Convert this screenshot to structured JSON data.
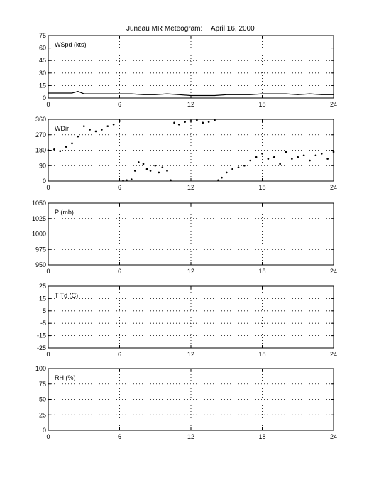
{
  "figure": {
    "title": "Juneau MR Meteogram:",
    "date": "April 16, 2000"
  },
  "chart_data": [
    {
      "type": "line",
      "panel_label": "WSpd (kts)",
      "xlim": [
        0,
        24
      ],
      "ylim": [
        0,
        75
      ],
      "xticks": [
        0,
        6,
        12,
        18,
        24
      ],
      "yticks": [
        0,
        15,
        30,
        45,
        60,
        75
      ],
      "grid": true,
      "line_color": "#000000",
      "series": [
        {
          "x": [
            0,
            1,
            2,
            2.5,
            3,
            4,
            5,
            6,
            7,
            8,
            9,
            10,
            11,
            12,
            13,
            14,
            15,
            16,
            17,
            18,
            19,
            20,
            21,
            22,
            23,
            24
          ],
          "values": [
            6,
            6,
            6,
            8,
            5,
            5,
            5,
            5,
            5,
            4,
            4,
            5,
            4,
            3,
            3,
            3,
            4,
            4,
            4,
            5,
            5,
            5,
            4,
            5,
            4,
            4
          ]
        }
      ]
    },
    {
      "type": "scatter",
      "panel_label": "WDir",
      "xlim": [
        0,
        24
      ],
      "ylim": [
        0,
        360
      ],
      "xticks": [
        0,
        6,
        12,
        18,
        24
      ],
      "yticks": [
        0,
        90,
        180,
        270,
        360
      ],
      "grid": true,
      "marker_color": "#000000",
      "series": [
        {
          "x": [
            0,
            0.5,
            1,
            1.5,
            2,
            2.5,
            3,
            3.5,
            4,
            4.5,
            5,
            5.5,
            6,
            6.3,
            6.6,
            7,
            7.3,
            7.6,
            8,
            8.3,
            8.6,
            9,
            9.3,
            9.6,
            10,
            10.3,
            10.6,
            11,
            11.5,
            12,
            12.5,
            13,
            13.5,
            14,
            14.3,
            14.6,
            15,
            15.5,
            16,
            16.5,
            17,
            17.5,
            18,
            18.5,
            19,
            19.5,
            20,
            20.5,
            21,
            21.5,
            22,
            22.5,
            23,
            23.5,
            24
          ],
          "values": [
            180,
            185,
            175,
            200,
            220,
            260,
            320,
            300,
            290,
            300,
            320,
            330,
            350,
            2,
            5,
            10,
            60,
            110,
            100,
            70,
            60,
            90,
            50,
            80,
            60,
            5,
            340,
            330,
            345,
            350,
            355,
            340,
            345,
            355,
            5,
            20,
            50,
            70,
            80,
            90,
            120,
            140,
            160,
            130,
            140,
            100,
            170,
            130,
            140,
            150,
            120,
            150,
            160,
            130,
            170
          ]
        }
      ]
    },
    {
      "type": "line",
      "panel_label": "P (mb)",
      "xlim": [
        0,
        24
      ],
      "ylim": [
        950,
        1050
      ],
      "xticks": [
        0,
        6,
        12,
        18,
        24
      ],
      "yticks": [
        950,
        975,
        1000,
        1025,
        1050
      ],
      "grid": true,
      "series": []
    },
    {
      "type": "line",
      "panel_label": "T Td (C)",
      "xlim": [
        0,
        24
      ],
      "ylim": [
        -25,
        25
      ],
      "xticks": [
        0,
        6,
        12,
        18,
        24
      ],
      "yticks": [
        -25,
        -15,
        -5,
        5,
        15,
        25
      ],
      "grid": true,
      "series": []
    },
    {
      "type": "line",
      "panel_label": "RH (%)",
      "xlim": [
        0,
        24
      ],
      "ylim": [
        0,
        100
      ],
      "xticks": [
        0,
        6,
        12,
        18,
        24
      ],
      "yticks": [
        0,
        25,
        50,
        75,
        100
      ],
      "grid": true,
      "series": []
    }
  ]
}
